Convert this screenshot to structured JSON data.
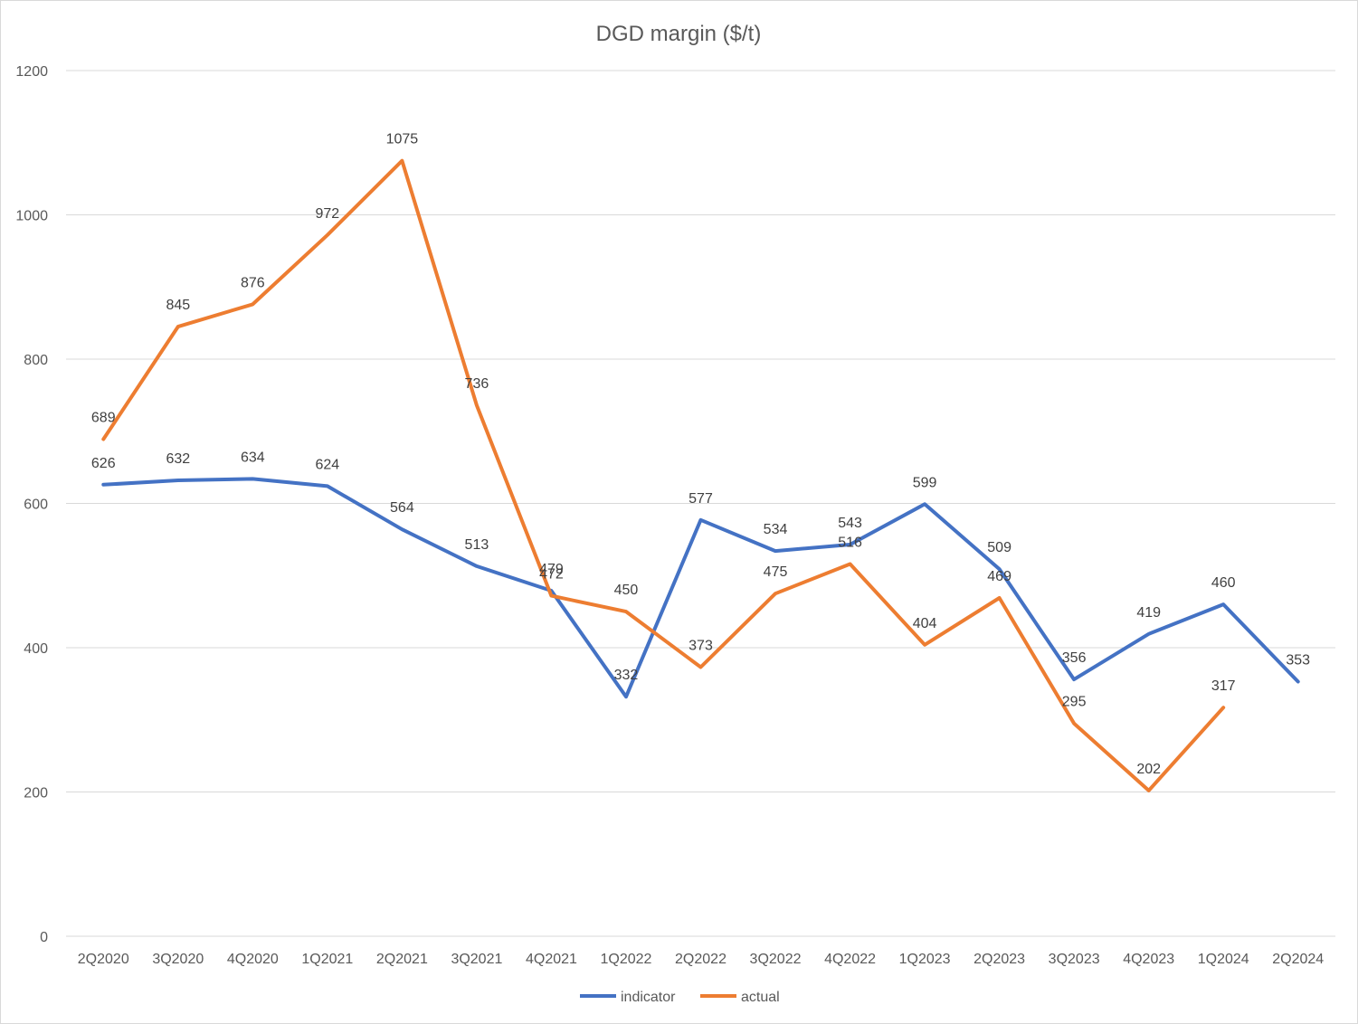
{
  "chart_data": {
    "type": "line",
    "title": "DGD margin ($/t)",
    "xlabel": "",
    "ylabel": "",
    "categories": [
      "2Q2020",
      "3Q2020",
      "4Q2020",
      "1Q2021",
      "2Q2021",
      "3Q2021",
      "4Q2021",
      "1Q2022",
      "2Q2022",
      "3Q2022",
      "4Q2022",
      "1Q2023",
      "2Q2023",
      "3Q2023",
      "4Q2023",
      "1Q2024",
      "2Q2024"
    ],
    "ylim": [
      0,
      1200
    ],
    "yticks": [
      0,
      200,
      400,
      600,
      800,
      1000,
      1200
    ],
    "grid": true,
    "legend": "bottom",
    "series": [
      {
        "name": "indicator",
        "color": "#4472c4",
        "values": [
          626,
          632,
          634,
          624,
          564,
          513,
          479,
          332,
          577,
          534,
          543,
          599,
          509,
          356,
          419,
          460,
          353
        ]
      },
      {
        "name": "actual",
        "color": "#ed7d31",
        "values": [
          689,
          845,
          876,
          972,
          1075,
          736,
          472,
          450,
          373,
          475,
          516,
          404,
          469,
          295,
          202,
          317,
          null
        ]
      }
    ]
  }
}
